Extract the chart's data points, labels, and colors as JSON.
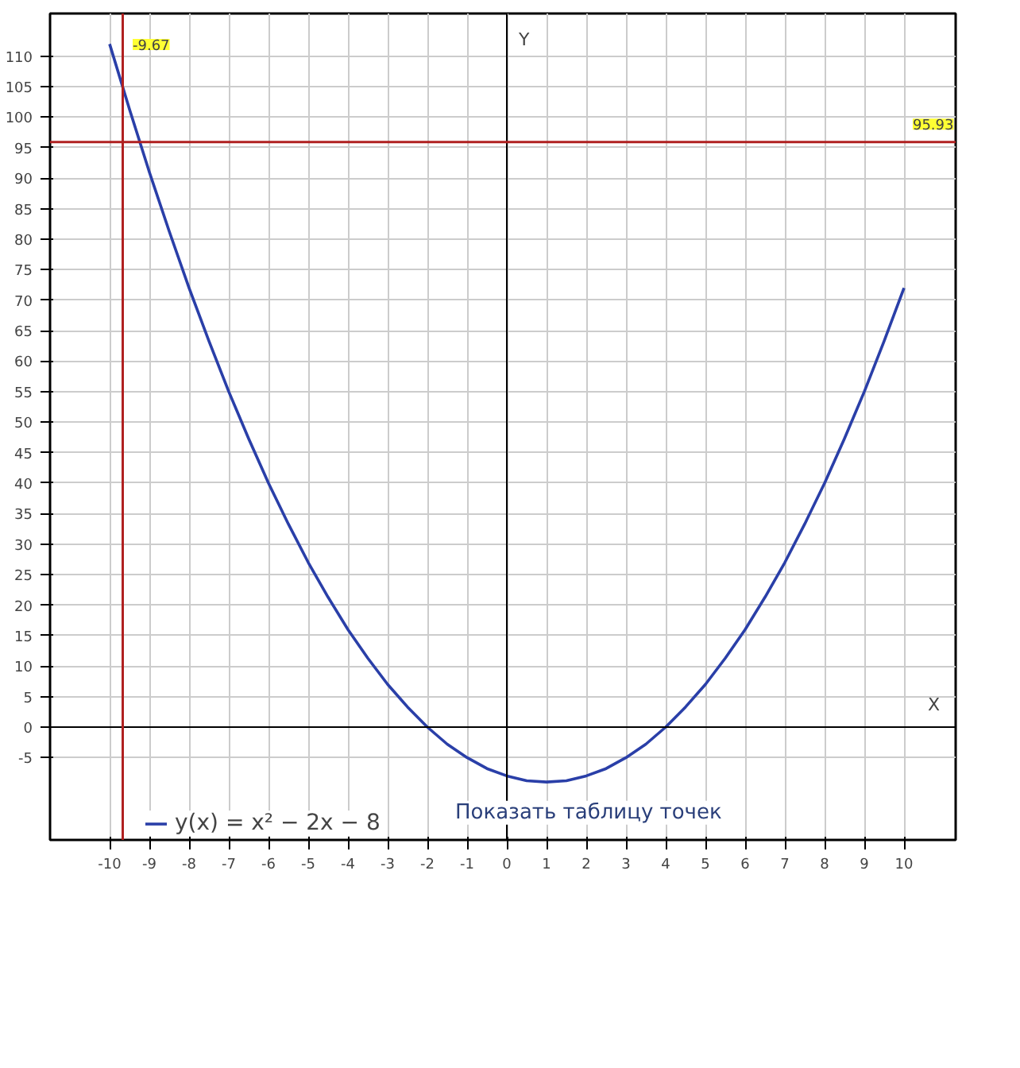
{
  "chart_data": {
    "type": "line",
    "xlabel": "X",
    "ylabel": "Y",
    "x": [
      -10,
      -9.5,
      -9,
      -8.5,
      -8,
      -7.5,
      -7,
      -6.5,
      -6,
      -5.5,
      -5,
      -4.5,
      -4,
      -3.5,
      -3,
      -2.5,
      -2,
      -1.5,
      -1,
      -0.5,
      0,
      0.5,
      1,
      1.5,
      2,
      2.5,
      3,
      3.5,
      4,
      4.5,
      5,
      5.5,
      6,
      6.5,
      7,
      7.5,
      8,
      8.5,
      9,
      9.5,
      10
    ],
    "series": [
      {
        "name": "y(x) = x² − 2x − 8",
        "color": "#2a3fa8",
        "values": [
          112,
          101.3,
          91,
          81.3,
          72,
          63.3,
          55,
          47.3,
          40,
          33.3,
          27,
          21.3,
          16,
          11.3,
          7,
          3.3,
          0,
          -2.8,
          -5,
          -6.8,
          -8,
          -8.8,
          -9,
          -8.8,
          -8,
          -6.8,
          -5,
          -2.8,
          0,
          3.3,
          7,
          11.3,
          16,
          21.3,
          27,
          33.3,
          40,
          47.3,
          55,
          63.3,
          72
        ]
      }
    ],
    "xlim": [
      -11.5,
      11.3
    ],
    "ylim": [
      -18.5,
      117
    ],
    "xticks": [
      -10,
      -9,
      -8,
      -7,
      -6,
      -5,
      -4,
      -3,
      -2,
      -1,
      0,
      1,
      2,
      3,
      4,
      5,
      6,
      7,
      8,
      9,
      10
    ],
    "yticks": [
      -5,
      0,
      5,
      10,
      15,
      20,
      25,
      30,
      35,
      40,
      45,
      50,
      55,
      60,
      65,
      70,
      75,
      80,
      85,
      90,
      95,
      100,
      105,
      110
    ],
    "ref_lines": [
      {
        "axis": "x",
        "value": -9.67,
        "label": "-9.67",
        "color": "#b02020"
      },
      {
        "axis": "y",
        "value": 95.93,
        "label": "95.93",
        "color": "#b02020"
      }
    ],
    "annotations": [
      "Показать таблицу точек"
    ],
    "grid": true,
    "legend": "bottom",
    "marker": "none",
    "line_style": "solid"
  }
}
